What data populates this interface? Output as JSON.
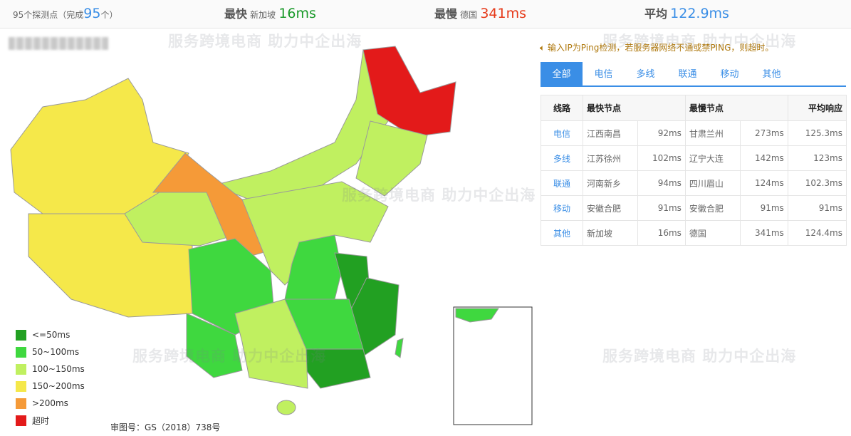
{
  "summary": {
    "probe_count_text": "95个探测点（完成",
    "completed": "95",
    "unit": "个）",
    "fastest_label": "最快",
    "fastest_node": "新加坡",
    "fastest_value": "16ms",
    "slowest_label": "最慢",
    "slowest_node": "德国",
    "slowest_value": "341ms",
    "avg_label": "平均",
    "avg_value": "122.9ms"
  },
  "notice": "输入IP为Ping检测，若服务器网络不通或禁PING，则超时。",
  "tabs": [
    "全部",
    "电信",
    "多线",
    "联通",
    "移动",
    "其他"
  ],
  "table": {
    "headers": [
      "线路",
      "最快节点",
      "最慢节点",
      "平均响应"
    ],
    "rows": [
      {
        "line": "电信",
        "fast_node": "江西南昌",
        "fast": "92ms",
        "slow_node": "甘肃兰州",
        "slow": "273ms",
        "avg": "125.3ms"
      },
      {
        "line": "多线",
        "fast_node": "江苏徐州",
        "fast": "102ms",
        "slow_node": "辽宁大连",
        "slow": "142ms",
        "avg": "123ms"
      },
      {
        "line": "联通",
        "fast_node": "河南新乡",
        "fast": "94ms",
        "slow_node": "四川眉山",
        "slow": "124ms",
        "avg": "102.3ms"
      },
      {
        "line": "移动",
        "fast_node": "安徽合肥",
        "fast": "91ms",
        "slow_node": "安徽合肥",
        "slow": "91ms",
        "avg": "91ms"
      },
      {
        "line": "其他",
        "fast_node": "新加坡",
        "fast": "16ms",
        "slow_node": "德国",
        "slow": "341ms",
        "avg": "124.4ms"
      }
    ]
  },
  "legend": [
    {
      "label": "<=50ms",
      "color": "#22a022"
    },
    {
      "label": "50~100ms",
      "color": "#3fd83f"
    },
    {
      "label": "100~150ms",
      "color": "#c0f060"
    },
    {
      "label": "150~200ms",
      "color": "#f5e84a"
    },
    {
      "label": ">200ms",
      "color": "#f59a38"
    },
    {
      "label": "超时",
      "color": "#e31a1a"
    }
  ],
  "map_footer": "审图号：GS（2018）738号",
  "watermark": "服务跨境电商 助力中企出海"
}
